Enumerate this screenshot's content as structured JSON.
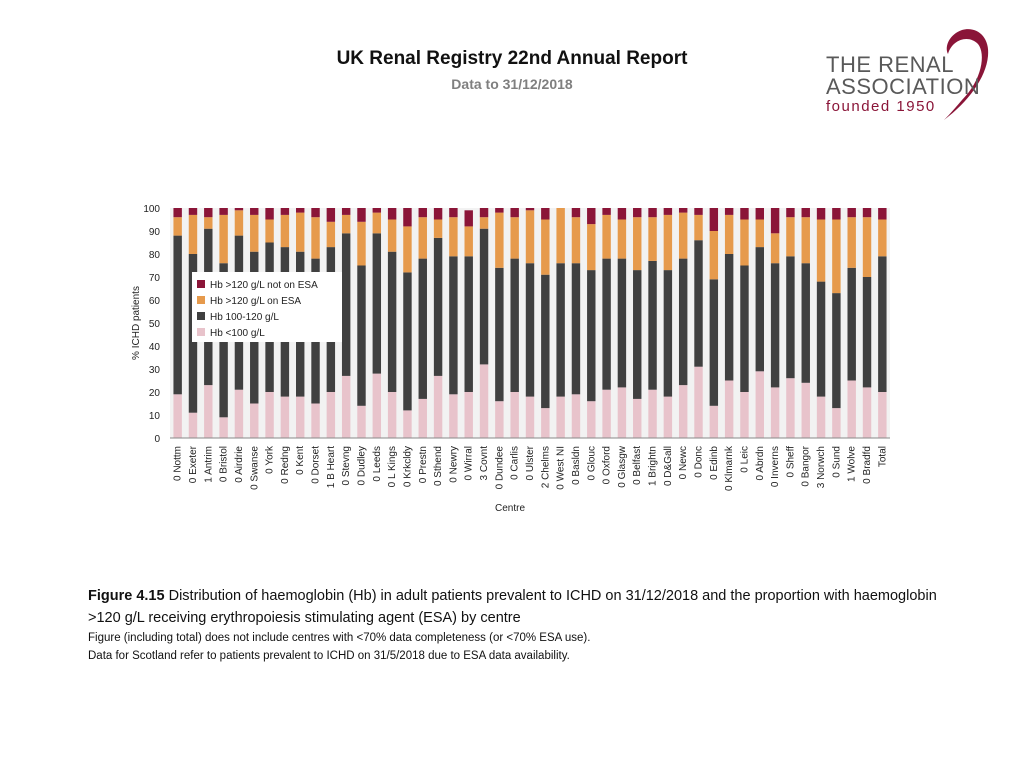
{
  "header": {
    "title": "UK Renal Registry 22nd Annual Report",
    "subtitle": "Data to 31/12/2018"
  },
  "logo": {
    "line1": "THE RENAL",
    "line2": "ASSOCIATION",
    "line3": "founded 1950"
  },
  "caption": {
    "figure_label": "Figure 4.15",
    "figure_text": "Distribution of haemoglobin (Hb) in adult patients prevalent to ICHD on 31/12/2018 and the proportion with haemoglobin >120 g/L receiving erythropoiesis stimulating agent (ESA) by centre",
    "note1": "Figure (including total) does not include centres with <70% data completeness (or <70% ESA use).",
    "note2": "Data for Scotland refer to patients prevalent to ICHD on 31/5/2018 due to ESA data availability."
  },
  "colors": {
    "low": "#e8c3cb",
    "mid": "#404040",
    "esa": "#e69a4c",
    "not_esa": "#8b1538",
    "background": "#f2f2f2"
  },
  "chart_data": {
    "type": "bar",
    "stacked": true,
    "ylabel": "% ICHD patients",
    "xlabel": "Centre",
    "ylim": [
      0,
      100
    ],
    "yticks": [
      0,
      10,
      20,
      30,
      40,
      50,
      60,
      70,
      80,
      90,
      100
    ],
    "legend_position": "left-middle",
    "categories": [
      "0 Nottm",
      "0 Exeter",
      "1 Antrim",
      "0 Bristol",
      "0 Airdrie",
      "0 Swanse",
      "0 York",
      "0 Redng",
      "0 Kent",
      "0 Dorset",
      "1 B Heart",
      "0 Stevng",
      "0 Dudley",
      "0 Leeds",
      "0 L Kings",
      "0 Krkcldy",
      "0 Prestn",
      "0 Sthend",
      "0 Newry",
      "0 Wirral",
      "3 Covnt",
      "0 Dundee",
      "0 Carlis",
      "0 Ulster",
      "2 Chelms",
      "0 West NI",
      "0 Basldn",
      "0 Glouc",
      "0 Oxford",
      "0 Glasgw",
      "0 Belfast",
      "1 Brightn",
      "0 D&Gall",
      "0 Newc",
      "0 Donc",
      "0 Edinb",
      "0 Klmarnk",
      "0 Leic",
      "0 Abrdn",
      "0 Inverns",
      "0 Sheff",
      "0 Bangor",
      "3 Norwch",
      "0 Sund",
      "1 Wolve",
      "0 Bradfd",
      "Total"
    ],
    "series": [
      {
        "name": "Hb <100 g/L",
        "values": [
          19,
          11,
          23,
          9,
          21,
          15,
          20,
          18,
          18,
          15,
          20,
          27,
          14,
          28,
          20,
          12,
          17,
          27,
          19,
          20,
          32,
          16,
          20,
          18,
          13,
          18,
          19,
          16,
          21,
          22,
          17,
          21,
          18,
          23,
          31,
          14,
          25,
          20,
          29,
          22,
          26,
          24,
          18,
          13,
          25,
          22,
          20
        ]
      },
      {
        "name": "Hb 100-120 g/L",
        "values": [
          69,
          69,
          68,
          67,
          67,
          66,
          65,
          65,
          63,
          63,
          63,
          62,
          61,
          61,
          61,
          60,
          61,
          60,
          60,
          59,
          59,
          58,
          58,
          58,
          58,
          58,
          57,
          57,
          57,
          56,
          56,
          56,
          55,
          55,
          55,
          55,
          55,
          55,
          54,
          54,
          53,
          52,
          50,
          50,
          49,
          48,
          59
        ]
      },
      {
        "name": "Hb >120 g/L on ESA",
        "values": [
          8,
          17,
          5,
          21,
          11,
          16,
          10,
          14,
          17,
          18,
          11,
          8,
          19,
          9,
          14,
          20,
          18,
          8,
          17,
          13,
          5,
          24,
          18,
          23,
          24,
          24,
          20,
          20,
          19,
          17,
          23,
          19,
          24,
          20,
          11,
          21,
          17,
          20,
          12,
          13,
          17,
          20,
          27,
          32,
          22,
          26,
          16
        ]
      },
      {
        "name": "Hb >120 g/L not on ESA",
        "values": [
          4,
          3,
          4,
          3,
          1,
          3,
          5,
          3,
          2,
          4,
          6,
          3,
          6,
          2,
          5,
          8,
          4,
          5,
          4,
          7,
          4,
          2,
          4,
          1,
          5,
          0,
          4,
          7,
          3,
          5,
          4,
          4,
          3,
          2,
          3,
          10,
          3,
          5,
          5,
          11,
          4,
          4,
          5,
          5,
          4,
          4,
          5
        ]
      }
    ]
  }
}
